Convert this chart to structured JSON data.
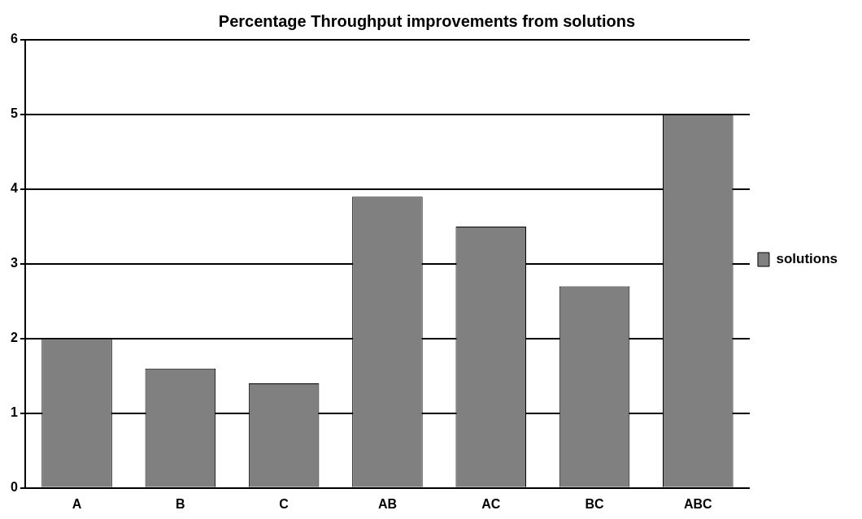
{
  "chart_data": {
    "type": "bar",
    "title": "Percentage Throughput improvements from solutions",
    "categories": [
      "A",
      "B",
      "C",
      "AB",
      "AC",
      "BC",
      "ABC"
    ],
    "series": [
      {
        "name": "solutions",
        "color": "#808080",
        "values": [
          2.0,
          1.6,
          1.4,
          3.9,
          3.5,
          2.7,
          5.0
        ]
      }
    ],
    "ylim": [
      0,
      6
    ],
    "yticks": [
      0,
      1,
      2,
      3,
      4,
      5,
      6
    ],
    "grid": "y",
    "legend": "right"
  }
}
